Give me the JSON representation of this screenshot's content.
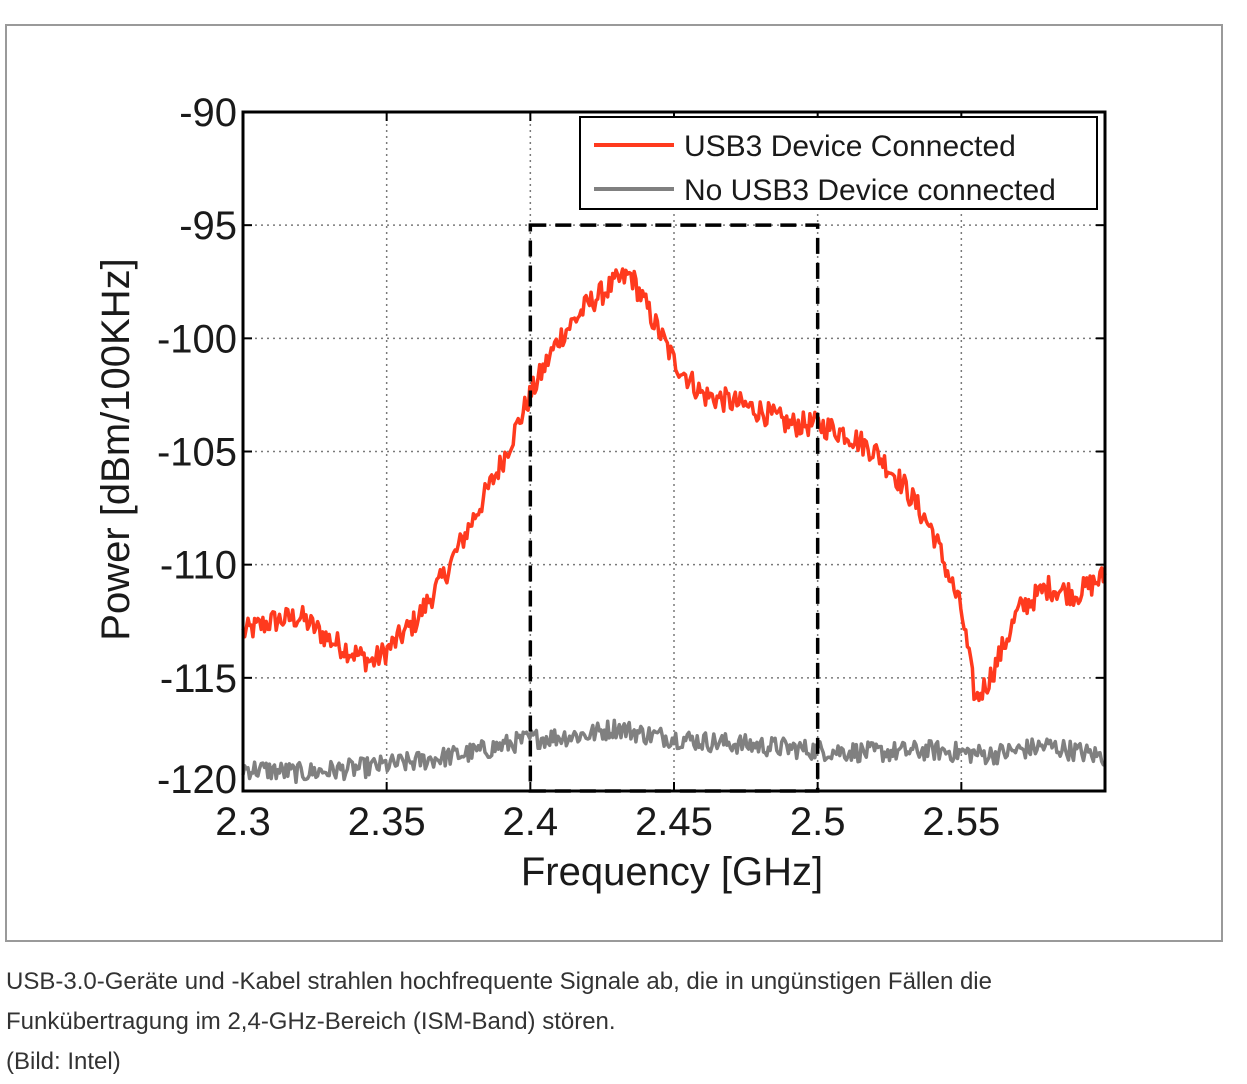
{
  "chart_data": {
    "type": "line",
    "xlabel": "Frequency [GHz]",
    "ylabel": "Power [dBm/100KHz]",
    "xlim": [
      2.3,
      2.6
    ],
    "ylim": [
      -120,
      -90
    ],
    "xticks": [
      2.3,
      2.35,
      2.4,
      2.45,
      2.5,
      2.55
    ],
    "xtick_labels": [
      "2.3",
      "2.35",
      "2.4",
      "2.45",
      "2.5",
      "2.55"
    ],
    "yticks": [
      -120,
      -115,
      -110,
      -105,
      -100,
      -95,
      -90
    ],
    "ytick_labels": [
      "-120",
      "-115",
      "-110",
      "-105",
      "-100",
      "-95",
      "-90"
    ],
    "grid": true,
    "legend_position": "top-right",
    "highlight_region": {
      "x": [
        2.4,
        2.5
      ],
      "y": [
        -120,
        -95
      ],
      "style": "dashed"
    },
    "series": [
      {
        "name": "USB3 Device Connected",
        "color": "#ff3a1e",
        "x": [
          2.3,
          2.31,
          2.32,
          2.33,
          2.34,
          2.345,
          2.35,
          2.36,
          2.37,
          2.38,
          2.39,
          2.4,
          2.41,
          2.42,
          2.43,
          2.435,
          2.44,
          2.45,
          2.46,
          2.47,
          2.48,
          2.49,
          2.5,
          2.51,
          2.52,
          2.53,
          2.54,
          2.55,
          2.555,
          2.56,
          2.57,
          2.58,
          2.59,
          2.6
        ],
        "values": [
          -113.0,
          -112.5,
          -112.3,
          -113.3,
          -114.0,
          -114.3,
          -113.8,
          -112.5,
          -110.5,
          -108.0,
          -105.5,
          -102.5,
          -100.0,
          -98.5,
          -97.5,
          -97.2,
          -98.5,
          -101.0,
          -102.5,
          -102.8,
          -103.2,
          -103.8,
          -103.8,
          -104.2,
          -105.0,
          -106.5,
          -108.5,
          -112.0,
          -116.0,
          -115.0,
          -112.0,
          -111.0,
          -111.3,
          -110.5
        ]
      },
      {
        "name": "No USB3 Device connected",
        "color": "#808080",
        "x": [
          2.3,
          2.32,
          2.34,
          2.36,
          2.38,
          2.4,
          2.42,
          2.43,
          2.44,
          2.46,
          2.48,
          2.5,
          2.52,
          2.54,
          2.56,
          2.58,
          2.6
        ],
        "values": [
          -119.0,
          -119.2,
          -119.0,
          -118.7,
          -118.3,
          -117.7,
          -117.5,
          -117.2,
          -117.5,
          -117.8,
          -118.0,
          -118.2,
          -118.3,
          -118.2,
          -118.4,
          -118.0,
          -118.5
        ]
      }
    ]
  },
  "caption": {
    "line1": "USB-3.0-Geräte und -Kabel strahlen hochfrequente Signale ab, die in ungünstigen Fällen die",
    "line2": "Funkübertragung im 2,4-GHz-Bereich (ISM-Band) stören.",
    "credit": "(Bild: Intel)"
  }
}
